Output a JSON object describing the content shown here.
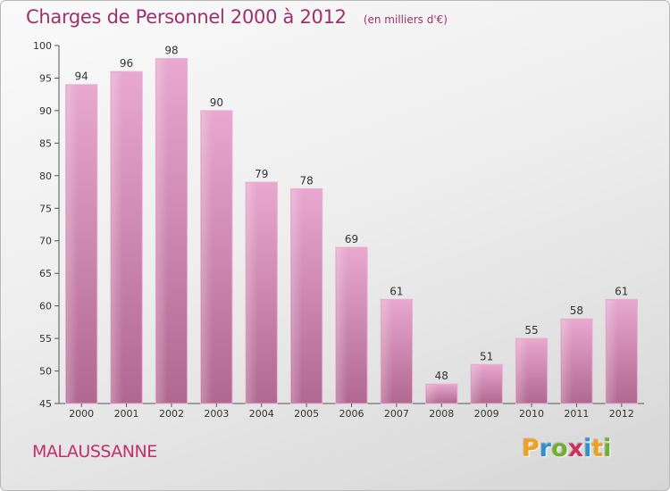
{
  "chart_data": {
    "type": "bar",
    "title": "Charges de Personnel 2000 à 2012",
    "subtitle": "(en milliers d'€)",
    "categories": [
      "2000",
      "2001",
      "2002",
      "2003",
      "2004",
      "2005",
      "2006",
      "2007",
      "2008",
      "2009",
      "2010",
      "2011",
      "2012"
    ],
    "values": [
      94,
      96,
      98,
      90,
      79,
      78,
      69,
      61,
      48,
      51,
      55,
      58,
      61
    ],
    "ylim": [
      45,
      100
    ],
    "yticks": [
      45,
      50,
      55,
      60,
      65,
      70,
      75,
      80,
      85,
      90,
      95,
      100
    ],
    "xlabel": "",
    "ylabel": "",
    "grid": false,
    "bar_color_top": "#e8a8d0",
    "bar_color_bottom": "#b06890"
  },
  "commune": "MALAUSSANNE",
  "brand": {
    "letters": [
      "P",
      "r",
      "o",
      "x",
      "i",
      "t",
      "i"
    ],
    "colors": [
      "#f0a020",
      "#3090d0",
      "#70b030",
      "#d03060",
      "#3090d0",
      "#f0a020",
      "#70b030"
    ]
  }
}
